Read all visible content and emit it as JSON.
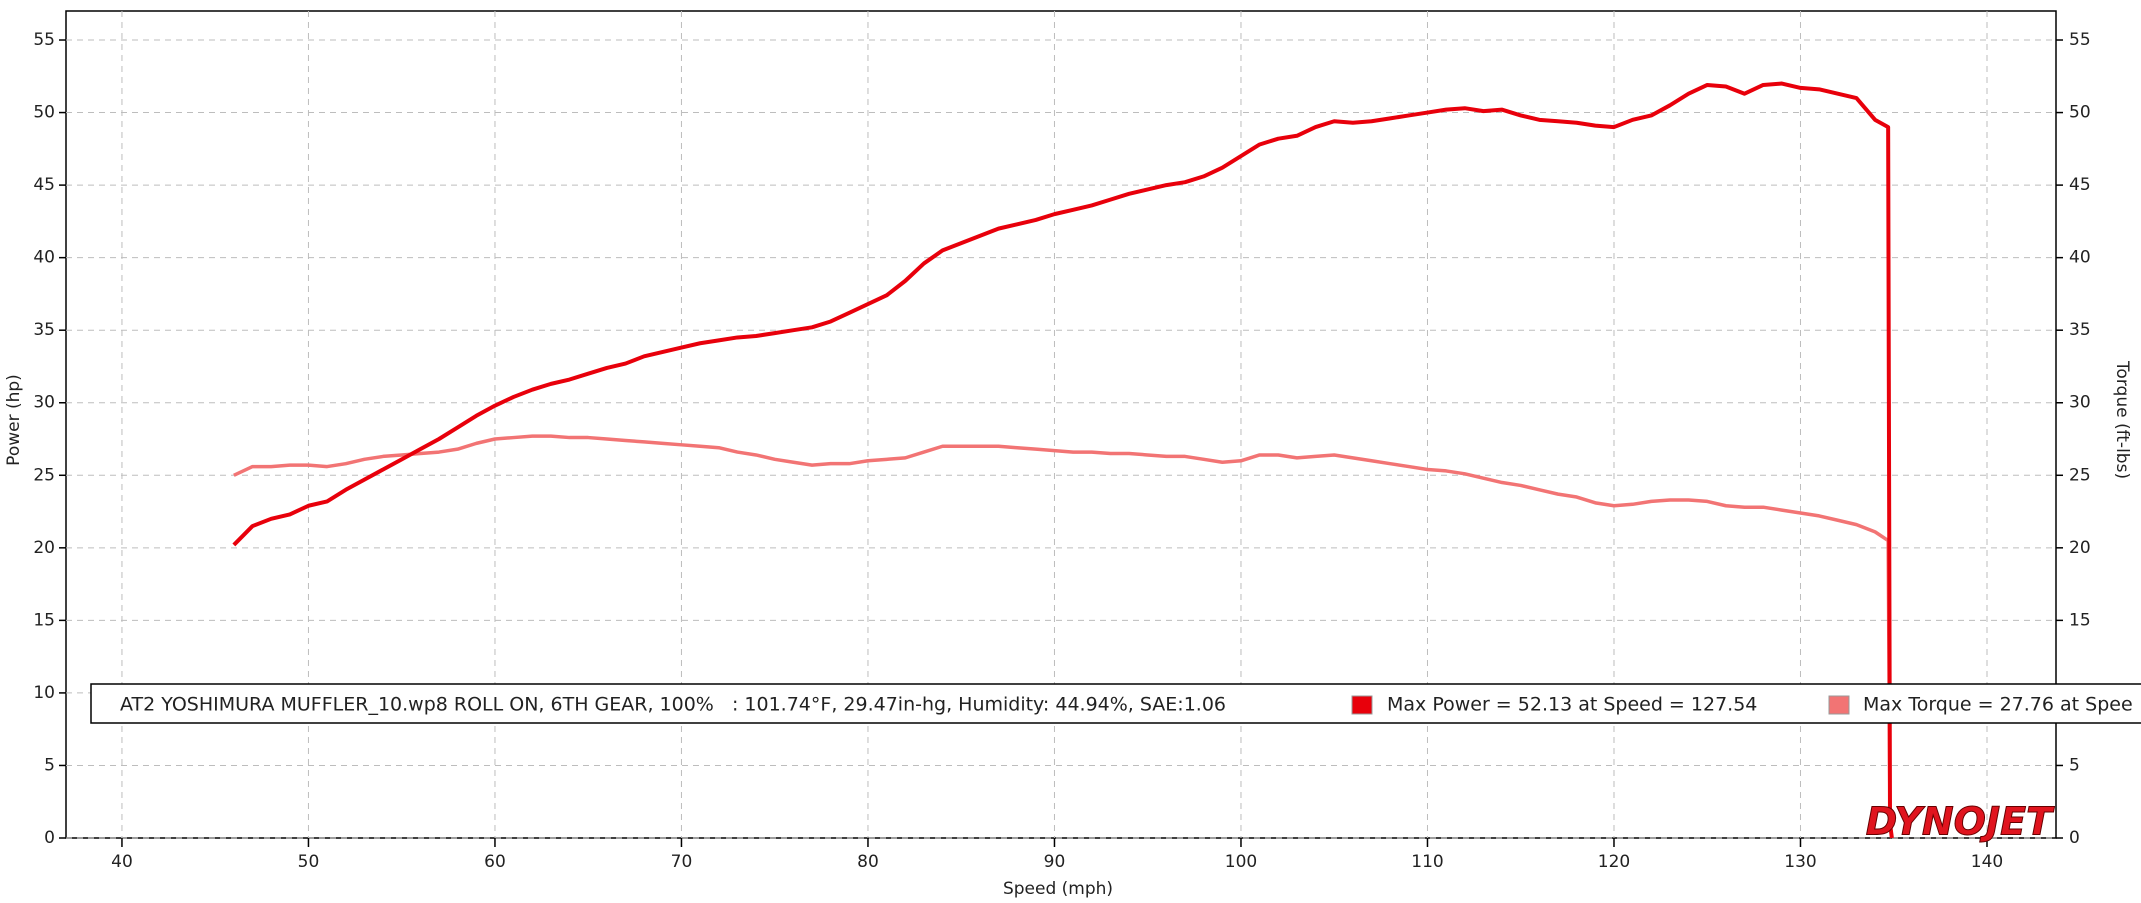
{
  "chart_data": {
    "type": "line",
    "xlabel": "Speed (mph)",
    "ylabel": "Power (hp)",
    "y2label": "Torque (ft-lbs)",
    "logo": "DYNOJET",
    "legend": [
      "AT2 YOSHIMURA MUFFLER_10.wp8 ROLL ON, 6TH GEAR, 100%   : 101.74°F, 29.47in-hg, Humidity: 44.94%, SAE:1.06",
      "Max Power = 52.13 at Speed = 127.54",
      "Max Torque = 27.76 at Spee"
    ],
    "grid": true,
    "xlim": [
      37,
      143.7
    ],
    "ylim": [
      0,
      57
    ],
    "y2lim": [
      0,
      57
    ],
    "xticks": [
      40,
      50,
      60,
      70,
      80,
      90,
      100,
      110,
      120,
      130,
      140
    ],
    "yticks": [
      0,
      5,
      10,
      15,
      20,
      25,
      30,
      35,
      40,
      45,
      50,
      55
    ],
    "y2ticks": [
      0,
      5,
      10,
      15,
      20,
      25,
      30,
      35,
      40,
      45,
      50,
      55
    ],
    "x": [
      46,
      47,
      48,
      49,
      50,
      51,
      52,
      53,
      54,
      55,
      56,
      57,
      58,
      59,
      60,
      61,
      62,
      63,
      64,
      65,
      66,
      67,
      68,
      69,
      70,
      71,
      72,
      73,
      74,
      75,
      76,
      77,
      78,
      79,
      80,
      81,
      82,
      83,
      84,
      85,
      86,
      87,
      88,
      89,
      90,
      91,
      92,
      93,
      94,
      95,
      96,
      97,
      98,
      99,
      100,
      101,
      102,
      103,
      104,
      105,
      106,
      107,
      108,
      109,
      110,
      111,
      112,
      113,
      114,
      115,
      116,
      117,
      118,
      119,
      120,
      121,
      122,
      123,
      124,
      125,
      126,
      127,
      128,
      129,
      130,
      131,
      132,
      133,
      134,
      134.7,
      134.8,
      134.9
    ],
    "series": [
      {
        "name": "Power",
        "color": "#e8000b",
        "axis": "y",
        "values": [
          20.2,
          21.5,
          22,
          22.3,
          22.9,
          23.2,
          24,
          24.7,
          25.4,
          26.1,
          26.8,
          27.5,
          28.3,
          29.1,
          29.8,
          30.4,
          30.9,
          31.3,
          31.6,
          32,
          32.4,
          32.7,
          33.2,
          33.5,
          33.8,
          34.1,
          34.3,
          34.5,
          34.6,
          34.8,
          35,
          35.2,
          35.6,
          36.2,
          36.8,
          37.4,
          38.4,
          39.6,
          40.5,
          41,
          41.5,
          42,
          42.3,
          42.6,
          43,
          43.3,
          43.6,
          44,
          44.4,
          44.7,
          45,
          45.2,
          45.6,
          46.2,
          47,
          47.8,
          48.2,
          48.4,
          49,
          49.4,
          49.3,
          49.4,
          49.6,
          49.8,
          50,
          50.2,
          50.3,
          50.1,
          50.2,
          49.8,
          49.5,
          49.4,
          49.3,
          49.1,
          49,
          49.5,
          49.8,
          50.5,
          51.3,
          51.9,
          51.8,
          51.3,
          51.9,
          52,
          51.7,
          51.6,
          51.3,
          51,
          49.5,
          49,
          1,
          0
        ]
      },
      {
        "name": "Torque",
        "color": "#f27474",
        "axis": "y2",
        "values": [
          25,
          25.6,
          25.6,
          25.7,
          25.7,
          25.6,
          25.8,
          26.1,
          26.3,
          26.4,
          26.5,
          26.6,
          26.8,
          27.2,
          27.5,
          27.6,
          27.7,
          27.7,
          27.6,
          27.6,
          27.5,
          27.4,
          27.3,
          27.2,
          27.1,
          27,
          26.9,
          26.6,
          26.4,
          26.1,
          25.9,
          25.7,
          25.8,
          25.8,
          26,
          26.1,
          26.2,
          26.6,
          27,
          27,
          27,
          27,
          26.9,
          26.8,
          26.7,
          26.6,
          26.6,
          26.5,
          26.5,
          26.4,
          26.3,
          26.3,
          26.1,
          25.9,
          26,
          26.4,
          26.4,
          26.2,
          26.3,
          26.4,
          26.2,
          26,
          25.8,
          25.6,
          25.4,
          25.3,
          25.1,
          24.8,
          24.5,
          24.3,
          24,
          23.7,
          23.5,
          23.1,
          22.9,
          23,
          23.2,
          23.3,
          23.3,
          23.2,
          22.9,
          22.8,
          22.8,
          22.6,
          22.4,
          22.2,
          21.9,
          21.6,
          21.1,
          20.5,
          1,
          0
        ]
      }
    ]
  }
}
